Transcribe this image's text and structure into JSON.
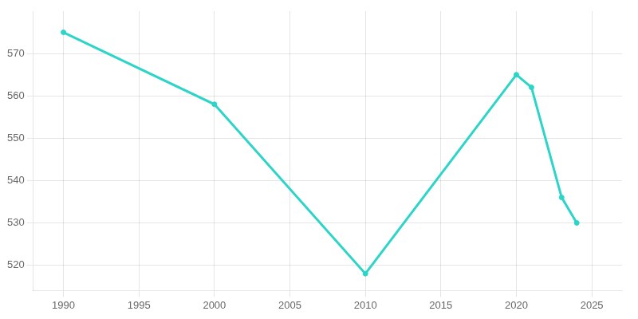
{
  "chart_data": {
    "type": "line",
    "x": [
      1990,
      2000,
      2010,
      2020,
      2021,
      2023,
      2024
    ],
    "values": [
      575,
      558,
      518,
      565,
      562,
      536,
      530
    ],
    "color": "#2dd4c8",
    "marker": "o",
    "xlim": [
      1988,
      2027
    ],
    "ylim": [
      514,
      580
    ],
    "xticks": [
      1990,
      1995,
      2000,
      2005,
      2010,
      2015,
      2020,
      2025
    ],
    "yticks": [
      520,
      530,
      540,
      550,
      560,
      570
    ],
    "grid": true
  }
}
